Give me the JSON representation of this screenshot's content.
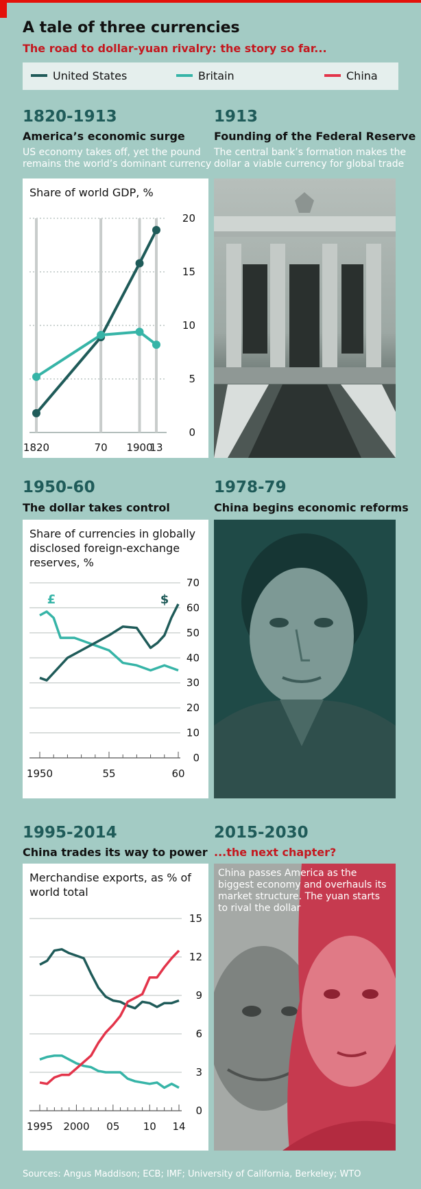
{
  "header": {
    "title": "A tale of three currencies",
    "subtitle": "The road to dollar-yuan rivalry: the story so far..."
  },
  "legend": [
    {
      "label": "United States",
      "color": "#1f5b59"
    },
    {
      "label": "Britain",
      "color": "#36b4a7"
    },
    {
      "label": "China",
      "color": "#e3344a"
    }
  ],
  "sections": {
    "s1820": {
      "years": "1820-1913",
      "heading": "America’s economic surge",
      "desc1": "US economy takes off, yet the pound",
      "desc2": "remains the world’s dominant currency"
    },
    "s1913": {
      "years": "1913",
      "heading": "Founding of the Federal Reserve",
      "desc1": "The central bank’s formation makes the",
      "desc2": "dollar a viable currency for global trade"
    },
    "s1950": {
      "years": "1950-60",
      "heading": "The dollar takes control"
    },
    "s1978": {
      "years": "1978-79",
      "heading": "China begins economic reforms"
    },
    "s1995": {
      "years": "1995-2014",
      "heading": "China trades its way to power"
    },
    "s2015": {
      "years": "2015-2030",
      "heading": "...the next chapter?",
      "desc1": "China passes America as the",
      "desc2": "biggest economy and overhauls its",
      "desc3": "market structure. The yuan starts",
      "desc4": "to rival the dollar"
    }
  },
  "chart_data": [
    {
      "type": "line",
      "title": "Share of world GDP, %",
      "x": [
        1820,
        1870,
        1900,
        1913
      ],
      "xticks": [
        "1820",
        "70",
        "1900",
        "13"
      ],
      "ylim": [
        0,
        20
      ],
      "yticks": [
        0,
        5,
        10,
        15,
        20
      ],
      "series": [
        {
          "name": "United States",
          "color": "#1f5b59",
          "values": [
            1.8,
            8.9,
            15.8,
            18.9
          ]
        },
        {
          "name": "Britain",
          "color": "#36b4a7",
          "values": [
            5.2,
            9.1,
            9.4,
            8.2
          ]
        }
      ]
    },
    {
      "type": "line",
      "title": "Share of currencies in globally disclosed foreign-exchange reserves, %",
      "xlim": [
        1950,
        1960
      ],
      "xticks": [
        "1950",
        "55",
        "60"
      ],
      "ylim": [
        0,
        70
      ],
      "yticks": [
        0,
        10,
        20,
        30,
        40,
        50,
        60,
        70
      ],
      "annotations": [
        "£",
        "$"
      ],
      "series": [
        {
          "name": "Britain",
          "color": "#36b4a7",
          "x": [
            1950,
            1950.5,
            1951,
            1951.5,
            1952,
            1952.5,
            1953,
            1954,
            1955,
            1956,
            1957,
            1958,
            1959,
            1960
          ],
          "values": [
            57,
            58.5,
            56,
            48,
            48,
            48,
            47,
            45,
            43,
            38,
            37,
            35,
            37,
            35
          ]
        },
        {
          "name": "United States",
          "color": "#1f5b59",
          "x": [
            1950,
            1950.5,
            1951,
            1952,
            1953,
            1954,
            1955,
            1956,
            1957,
            1958,
            1958.5,
            1959,
            1959.5,
            1960
          ],
          "values": [
            32,
            31,
            34,
            40,
            43,
            46,
            49,
            52.5,
            52,
            44,
            46,
            49,
            56,
            61.5
          ]
        }
      ]
    },
    {
      "type": "line",
      "title": "Merchandise exports, as % of world total",
      "xlim": [
        1995,
        2014
      ],
      "xticks": [
        "1995",
        "2000",
        "05",
        "10",
        "14"
      ],
      "ylim": [
        0,
        15
      ],
      "yticks": [
        0,
        3,
        6,
        9,
        12,
        15
      ],
      "series": [
        {
          "name": "United States",
          "color": "#1f5b59",
          "x": [
            1995,
            1996,
            1997,
            1998,
            1999,
            2000,
            2001,
            2002,
            2003,
            2004,
            2005,
            2006,
            2007,
            2008,
            2009,
            2010,
            2011,
            2012,
            2013,
            2014
          ],
          "values": [
            11.4,
            11.7,
            12.5,
            12.6,
            12.3,
            12.1,
            11.9,
            10.7,
            9.6,
            8.9,
            8.6,
            8.5,
            8.2,
            8.0,
            8.5,
            8.4,
            8.1,
            8.4,
            8.4,
            8.6
          ]
        },
        {
          "name": "Britain",
          "color": "#36b4a7",
          "x": [
            1995,
            1996,
            1997,
            1998,
            1999,
            2000,
            2001,
            2002,
            2003,
            2004,
            2005,
            2006,
            2007,
            2008,
            2009,
            2010,
            2011,
            2012,
            2013,
            2014
          ],
          "values": [
            4.0,
            4.2,
            4.3,
            4.3,
            4.0,
            3.7,
            3.5,
            3.4,
            3.1,
            3.0,
            3.0,
            3.0,
            2.5,
            2.3,
            2.2,
            2.1,
            2.2,
            1.8,
            2.1,
            1.8
          ]
        },
        {
          "name": "China",
          "color": "#e3344a",
          "x": [
            1995,
            1996,
            1997,
            1998,
            1999,
            2000,
            2001,
            2002,
            2003,
            2004,
            2005,
            2006,
            2007,
            2008,
            2009,
            2010,
            2011,
            2012,
            2013,
            2014
          ],
          "values": [
            2.2,
            2.1,
            2.6,
            2.8,
            2.8,
            3.3,
            3.8,
            4.3,
            5.3,
            6.1,
            6.7,
            7.4,
            8.5,
            8.8,
            9.1,
            10.4,
            10.4,
            11.2,
            11.9,
            12.5
          ]
        }
      ]
    }
  ],
  "source": "Sources: Angus Maddison; ECB; IMF; University of California, Berkeley; WTO"
}
